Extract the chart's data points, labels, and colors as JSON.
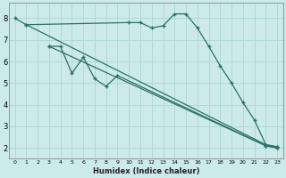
{
  "xlabel": "Humidex (Indice chaleur)",
  "bg_color": "#cdeaea",
  "grid_color": "#b0d8d8",
  "line_color": "#2a7068",
  "line1_x": [
    0,
    1,
    10,
    11,
    12,
    13,
    14,
    15,
    16,
    17,
    18,
    19,
    20,
    21,
    22,
    23
  ],
  "line1_y": [
    8.0,
    7.7,
    7.8,
    7.8,
    7.55,
    7.65,
    8.2,
    8.2,
    7.55,
    6.7,
    5.8,
    5.0,
    4.1,
    3.3,
    2.15,
    2.05
  ],
  "line2_x": [
    1,
    22,
    23
  ],
  "line2_y": [
    7.7,
    2.15,
    2.05
  ],
  "line3_x": [
    3,
    4,
    5,
    6,
    7,
    8,
    9,
    22,
    23
  ],
  "line3_y": [
    6.7,
    6.7,
    5.45,
    6.2,
    5.2,
    4.85,
    5.35,
    2.1,
    2.0
  ],
  "line4_x": [
    3,
    22,
    23
  ],
  "line4_y": [
    6.7,
    2.1,
    2.0
  ],
  "xlim": [
    -0.5,
    23.5
  ],
  "ylim": [
    1.5,
    8.7
  ],
  "yticks": [
    2,
    3,
    4,
    5,
    6,
    7,
    8
  ],
  "xticks": [
    0,
    1,
    2,
    3,
    4,
    5,
    6,
    7,
    8,
    9,
    10,
    11,
    12,
    13,
    14,
    15,
    16,
    17,
    18,
    19,
    20,
    21,
    22,
    23
  ]
}
